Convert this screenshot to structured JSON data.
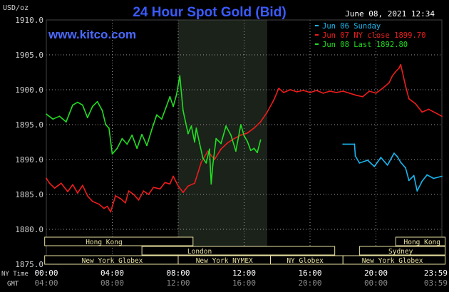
{
  "header": {
    "title": "24 Hour Spot Gold (Bid)",
    "date": "June 08, 2021 12:34",
    "site": "www.kitco.com",
    "unit": "USD/oz"
  },
  "colors": {
    "background": "#000000",
    "title": "#3a5bff",
    "site": "#4a6aff",
    "grid": "#9a9a9a",
    "axis_text": "#cfcfcf",
    "session_highlight": "#1a221a",
    "market_box": "#e8e0a0",
    "series_sunday": "#19b6f0",
    "series_close": "#ee1c1c",
    "series_last": "#22dd22"
  },
  "legend": [
    {
      "text": "Jun 06 Sunday",
      "color": "#19b6f0"
    },
    {
      "text": "Jun 07 NY close 1899.70",
      "color": "#ee1c1c"
    },
    {
      "text": "Jun 08 Last 1892.80",
      "color": "#22dd22"
    }
  ],
  "markets": {
    "row1": [
      {
        "label": "Hong Kong",
        "start": -0.1,
        "end": 8.9,
        "label_at": 3.5
      },
      {
        "label": "Hong Kong",
        "start": 21.2,
        "end": 24.2,
        "label_at": 22.8
      }
    ],
    "row2": [
      {
        "label": "London",
        "start": 5.8,
        "end": 17.5,
        "label_at": 9.3
      },
      {
        "label": "Sydney",
        "start": 19.0,
        "end": 24.2,
        "label_at": 21.5
      }
    ],
    "row3": [
      {
        "label": "New York Globex",
        "start": -0.1,
        "end": 8.0,
        "label_at": 4.0
      },
      {
        "label": "New York NYMEX",
        "start": 8.0,
        "end": 13.6,
        "label_at": 10.8
      },
      {
        "label": "NY Globex",
        "start": 13.6,
        "end": 18.0,
        "label_at": 15.7
      },
      {
        "label": "New York Globex",
        "start": 18.0,
        "end": 24.2,
        "label_at": 21.0
      }
    ]
  },
  "axis_labels": {
    "ny_row": "NY Time",
    "gmt_row": "GMT"
  },
  "chart_data": {
    "type": "line",
    "title": "24 Hour Spot Gold (Bid)",
    "ylabel": "USD/oz",
    "ylim": [
      1875,
      1910
    ],
    "xlim": [
      0,
      24
    ],
    "yticks": [
      1875,
      1880,
      1885,
      1890,
      1895,
      1900,
      1905,
      1910
    ],
    "ytick_labels": [
      "1875.0",
      "1880.0",
      "1885.0",
      "1890.0",
      "1895.0",
      "1900.0",
      "1905.0",
      "1910.0"
    ],
    "xticks": [
      0,
      4,
      8,
      12,
      16,
      20,
      24
    ],
    "ny_time_labels": [
      "00:00",
      "04:00",
      "08:00",
      "12:00",
      "16:00",
      "20:00",
      "23:59"
    ],
    "gmt_labels": [
      "04:00",
      "08:00",
      "12:00",
      "16:00",
      "20:00",
      "00:00",
      "03:59"
    ],
    "highlight_x_range": [
      8.0,
      13.4
    ],
    "grid": true,
    "legend_position": "top-right",
    "series": [
      {
        "name": "Jun 06 Sunday",
        "color": "#19b6f0",
        "x": [
          18.0,
          18.7,
          18.75,
          19.0,
          19.5,
          19.9,
          20.3,
          20.7,
          21.1,
          21.3,
          21.5,
          21.8,
          22.0,
          22.3,
          22.5,
          22.8,
          23.1,
          23.5,
          24.0
        ],
        "y": [
          1892.2,
          1892.2,
          1890.5,
          1889.5,
          1889.9,
          1889.0,
          1890.3,
          1889.2,
          1890.9,
          1890.4,
          1889.6,
          1888.8,
          1887.0,
          1887.7,
          1885.5,
          1886.9,
          1887.8,
          1887.3,
          1887.6
        ]
      },
      {
        "name": "Jun 07 NY close 1899.70",
        "color": "#ee1c1c",
        "x": [
          0,
          0.2,
          0.5,
          0.9,
          1.3,
          1.6,
          1.9,
          2.2,
          2.5,
          2.8,
          3.2,
          3.5,
          3.7,
          3.9,
          4.2,
          4.5,
          4.8,
          5.0,
          5.3,
          5.6,
          5.9,
          6.2,
          6.5,
          6.9,
          7.2,
          7.5,
          7.7,
          8.0,
          8.3,
          8.6,
          9.0,
          9.4,
          9.8,
          10.2,
          10.6,
          11.0,
          11.4,
          11.8,
          12.2,
          12.6,
          13.0,
          13.4,
          13.8,
          14.1,
          14.4,
          14.8,
          15.2,
          15.6,
          16.0,
          16.4,
          16.8,
          17.2,
          17.6,
          18.0,
          18.4,
          18.8,
          19.2,
          19.6,
          20.0,
          20.4,
          20.8,
          21.0,
          21.2,
          21.4,
          21.5,
          21.6,
          21.8,
          22.0,
          22.4,
          22.8,
          23.2,
          23.6,
          24.0
        ],
        "y": [
          1887.3,
          1886.6,
          1885.9,
          1886.6,
          1885.4,
          1886.4,
          1885.2,
          1886.3,
          1884.8,
          1884.0,
          1883.6,
          1883.0,
          1883.3,
          1882.5,
          1884.8,
          1884.4,
          1883.8,
          1885.5,
          1885.0,
          1884.2,
          1885.5,
          1885.0,
          1886.0,
          1885.8,
          1886.7,
          1886.5,
          1887.6,
          1886.2,
          1885.3,
          1886.2,
          1886.6,
          1889.6,
          1891.2,
          1890.0,
          1891.5,
          1892.4,
          1893.0,
          1893.5,
          1893.8,
          1894.5,
          1895.4,
          1896.8,
          1898.5,
          1900.2,
          1899.6,
          1900.0,
          1899.7,
          1899.9,
          1899.6,
          1899.9,
          1899.5,
          1899.8,
          1899.6,
          1899.8,
          1899.5,
          1899.2,
          1899.0,
          1899.8,
          1899.5,
          1900.2,
          1901.0,
          1902.0,
          1902.6,
          1903.1,
          1903.6,
          1902.6,
          1900.5,
          1898.7,
          1898.0,
          1896.8,
          1897.2,
          1896.7,
          1896.2
        ]
      },
      {
        "name": "Jun 08 Last 1892.80",
        "color": "#22dd22",
        "x": [
          0,
          0.4,
          0.8,
          1.2,
          1.6,
          1.9,
          2.2,
          2.5,
          2.8,
          3.1,
          3.4,
          3.6,
          3.8,
          4.0,
          4.3,
          4.6,
          4.9,
          5.2,
          5.5,
          5.8,
          6.1,
          6.4,
          6.7,
          7.0,
          7.3,
          7.5,
          7.7,
          7.9,
          8.1,
          8.3,
          8.6,
          8.8,
          9.0,
          9.1,
          9.3,
          9.5,
          9.7,
          9.9,
          10.0,
          10.1,
          10.3,
          10.6,
          10.9,
          11.2,
          11.5,
          11.8,
          12.0,
          12.2,
          12.4,
          12.6,
          12.8,
          13.0
        ],
        "y": [
          1896.5,
          1895.8,
          1896.2,
          1895.4,
          1897.8,
          1898.2,
          1897.8,
          1896.0,
          1897.6,
          1898.3,
          1897.0,
          1895.0,
          1894.5,
          1890.8,
          1891.6,
          1893.0,
          1892.2,
          1893.5,
          1891.6,
          1893.6,
          1892.0,
          1894.3,
          1896.4,
          1895.8,
          1897.7,
          1899.0,
          1897.6,
          1899.3,
          1902.0,
          1897.0,
          1893.7,
          1894.8,
          1892.5,
          1894.5,
          1892.3,
          1890.2,
          1889.5,
          1891.5,
          1886.5,
          1889.2,
          1893.0,
          1892.3,
          1894.8,
          1893.5,
          1891.2,
          1895.0,
          1893.4,
          1892.6,
          1891.3,
          1891.6,
          1891.0,
          1892.8
        ]
      }
    ]
  }
}
